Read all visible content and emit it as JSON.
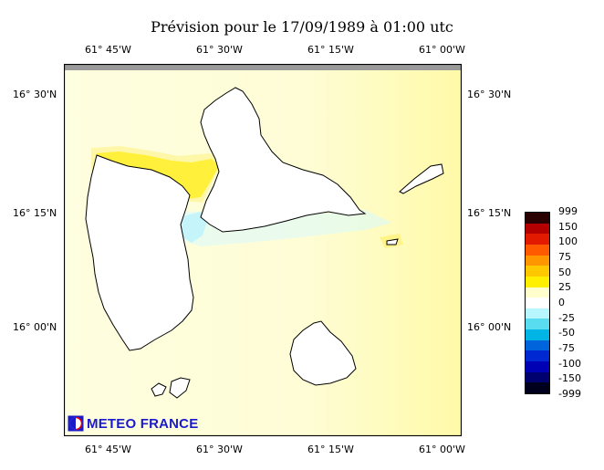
{
  "title": "Prévision pour le 17/09/1989 à 01:00 utc",
  "lon_ticks": [
    "61° 45'W",
    "61° 30'W",
    "61° 15'W",
    "61° 00'W"
  ],
  "lat_ticks": [
    "16° 30'N",
    "16° 15'N",
    "16° 00'N"
  ],
  "colorbar": {
    "labels": [
      "999",
      "150",
      "100",
      "75",
      "50",
      "25",
      "0",
      "-25",
      "-50",
      "-75",
      "-100",
      "-150",
      "-999"
    ],
    "colors": [
      "#2a0000",
      "#b40000",
      "#e11a00",
      "#ff5a00",
      "#ff9600",
      "#ffc800",
      "#ffef00",
      "#fffecc",
      "#ffffff",
      "#b8f6ff",
      "#59dcf0",
      "#00b4e6",
      "#0064dc",
      "#0028d2",
      "#0000b4",
      "#00006e",
      "#00001e"
    ]
  },
  "logo": {
    "text": "METEO FRANCE",
    "icon": "meteo-france-logo-icon"
  },
  "colors": {
    "sea": "#fefee0",
    "east_sea": "#fffaa8",
    "positive": "#ffee00",
    "negative": "#bff4ff"
  }
}
